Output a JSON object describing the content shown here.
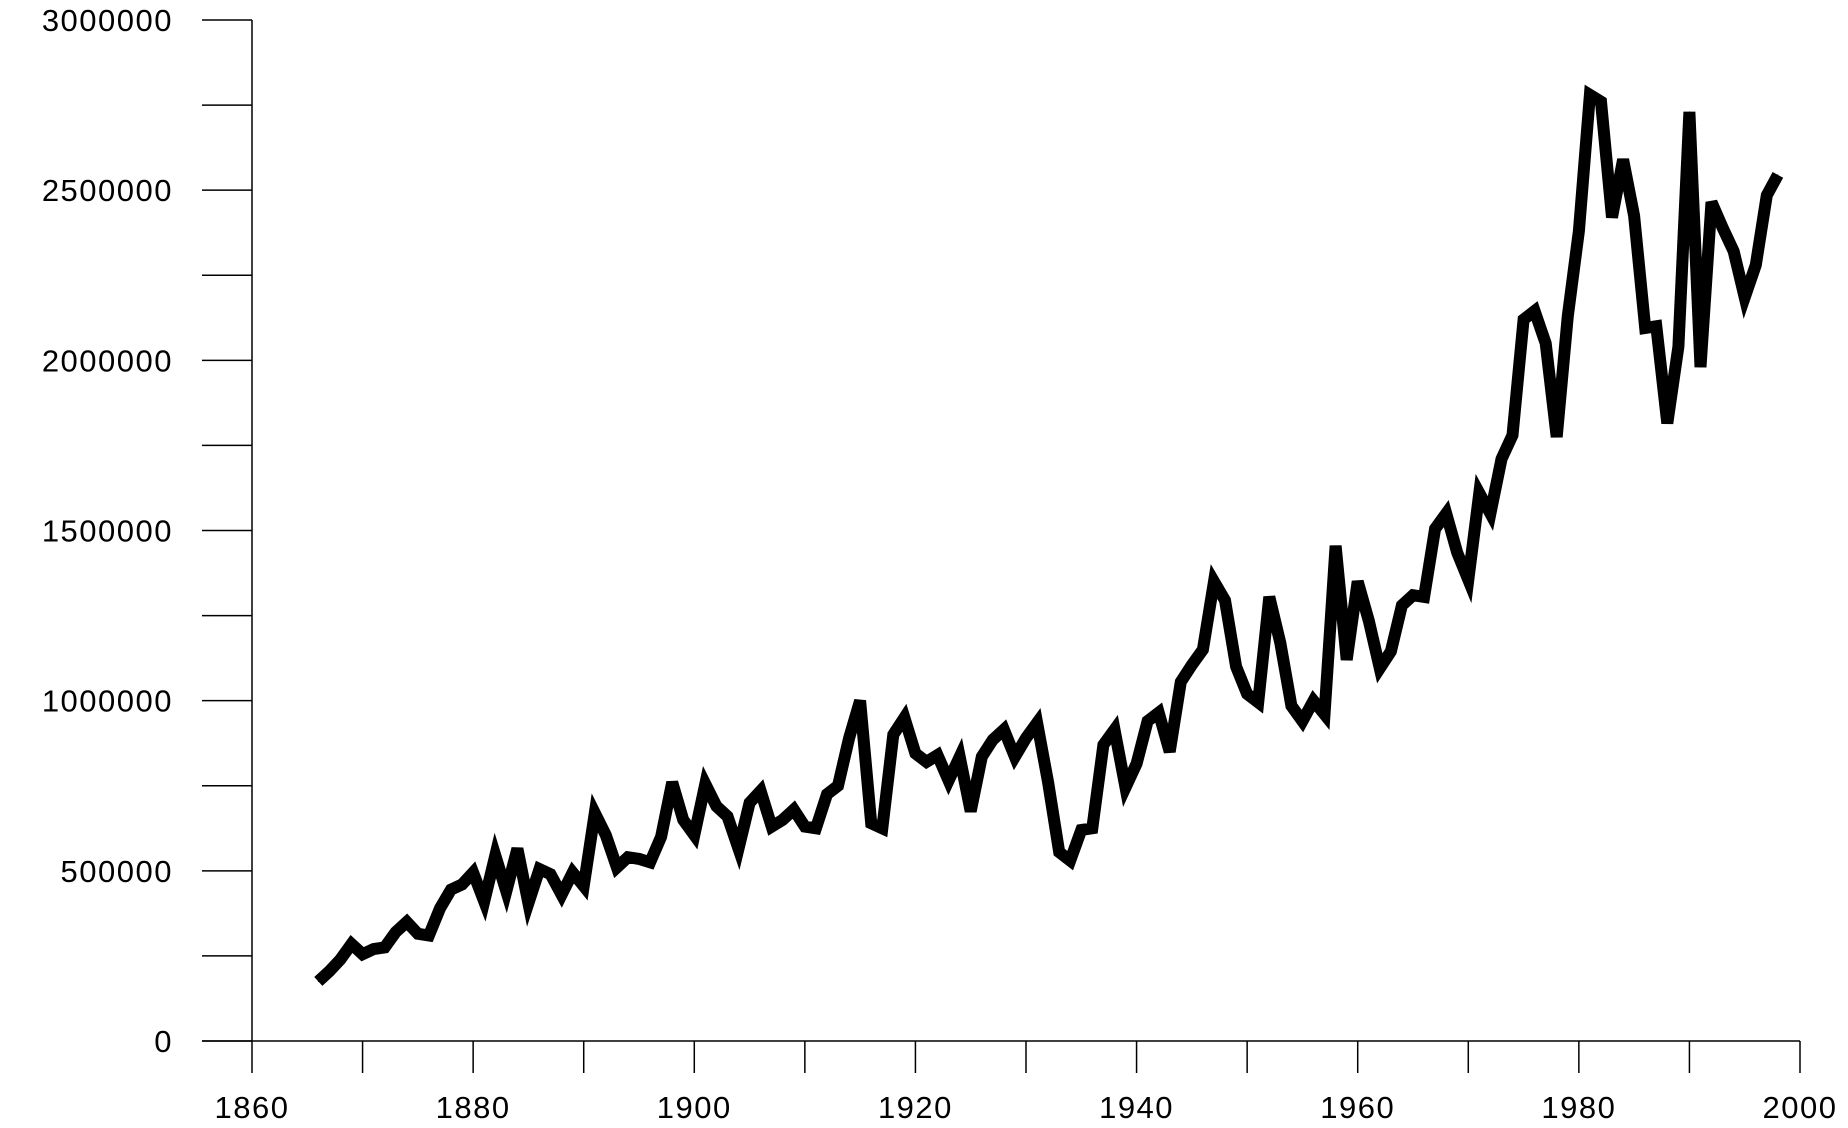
{
  "chart_data": {
    "type": "line",
    "title": "",
    "xlabel": "",
    "ylabel": "",
    "xlim": [
      1860,
      2000
    ],
    "ylim": [
      0,
      3000000
    ],
    "x_ticks": [
      1860,
      1880,
      1900,
      1920,
      1940,
      1960,
      1980,
      2000
    ],
    "x_tick_labels": [
      "1860",
      "1880",
      "1900",
      "1920",
      "1940",
      "1960",
      "1980",
      "2000"
    ],
    "x_minor_step": 10,
    "y_ticks": [
      0,
      500000,
      1000000,
      1500000,
      2000000,
      2500000,
      3000000
    ],
    "y_tick_labels": [
      "0",
      "500000",
      "1000000",
      "1500000",
      "2000000",
      "2500000",
      "3000000"
    ],
    "y_minor_step": 250000,
    "grid": false,
    "legend": "none",
    "line_color": "#000000",
    "series": [
      {
        "x": [
          1866,
          1867,
          1868,
          1869,
          1870,
          1871,
          1872,
          1873,
          1874,
          1875,
          1876,
          1877,
          1878,
          1879,
          1880,
          1881,
          1882,
          1883,
          1884,
          1885,
          1886,
          1887,
          1888,
          1889,
          1890,
          1891,
          1892,
          1893,
          1894,
          1895,
          1896,
          1897,
          1898,
          1899,
          1900,
          1901,
          1902,
          1903,
          1904,
          1905,
          1906,
          1907,
          1908,
          1909,
          1910,
          1911,
          1912,
          1913,
          1914,
          1915,
          1916,
          1917,
          1918,
          1919,
          1920,
          1921,
          1922,
          1923,
          1924,
          1925,
          1926,
          1927,
          1928,
          1929,
          1930,
          1931,
          1932,
          1933,
          1934,
          1935,
          1936,
          1937,
          1938,
          1939,
          1940,
          1941,
          1942,
          1943,
          1944,
          1945,
          1946,
          1947,
          1948,
          1949,
          1950,
          1951,
          1952,
          1953,
          1954,
          1955,
          1956,
          1957,
          1958,
          1959,
          1960,
          1961,
          1962,
          1963,
          1964,
          1965,
          1966,
          1967,
          1968,
          1969,
          1970,
          1971,
          1972,
          1973,
          1974,
          1975,
          1976,
          1977,
          1978,
          1979,
          1980,
          1981,
          1982,
          1983,
          1984,
          1985,
          1986,
          1987,
          1988,
          1989,
          1990,
          1991,
          1992,
          1993,
          1994,
          1995,
          1996,
          1997,
          1998
        ],
        "values": [
          175000,
          205000,
          240000,
          285000,
          255000,
          270000,
          275000,
          320000,
          350000,
          315000,
          310000,
          390000,
          445000,
          460000,
          495000,
          410000,
          545000,
          440000,
          565000,
          405000,
          505000,
          490000,
          430000,
          495000,
          455000,
          670000,
          605000,
          510000,
          540000,
          535000,
          525000,
          600000,
          760000,
          650000,
          605000,
          755000,
          690000,
          660000,
          565000,
          700000,
          735000,
          630000,
          650000,
          680000,
          630000,
          625000,
          725000,
          750000,
          890000,
          1000000,
          640000,
          625000,
          900000,
          950000,
          845000,
          820000,
          840000,
          765000,
          835000,
          675000,
          835000,
          885000,
          915000,
          835000,
          890000,
          935000,
          760000,
          555000,
          530000,
          620000,
          625000,
          870000,
          915000,
          745000,
          815000,
          940000,
          965000,
          850000,
          1055000,
          1105000,
          1150000,
          1350000,
          1295000,
          1100000,
          1020000,
          995000,
          1305000,
          1170000,
          985000,
          940000,
          1000000,
          960000,
          1455000,
          1120000,
          1350000,
          1235000,
          1095000,
          1145000,
          1280000,
          1310000,
          1305000,
          1505000,
          1550000,
          1435000,
          1355000,
          1610000,
          1550000,
          1710000,
          1780000,
          2120000,
          2145000,
          2050000,
          1775000,
          2130000,
          2380000,
          2780000,
          2760000,
          2420000,
          2590000,
          2425000,
          2095000,
          2100000,
          1815000,
          2040000,
          2730000,
          1980000,
          2465000,
          2390000,
          2320000,
          2185000,
          2280000,
          2485000,
          2545000
        ]
      }
    ]
  }
}
